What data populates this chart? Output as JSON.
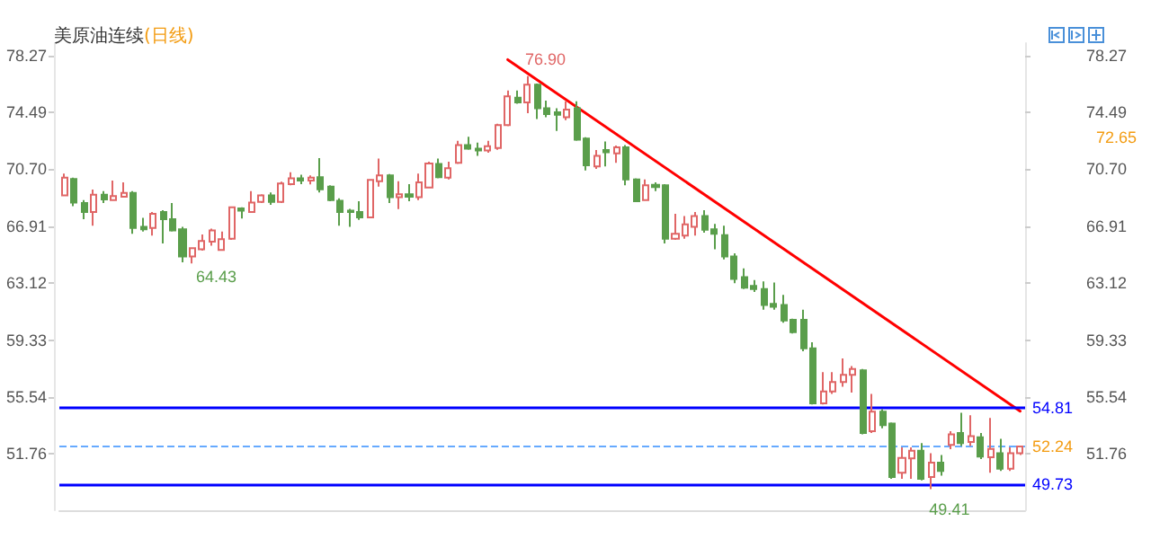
{
  "chart_data": {
    "type": "candlestick",
    "title": "美原油连续",
    "subtitle": "(日线)",
    "categories": [
      null,
      null,
      null,
      null,
      null,
      null,
      null,
      null,
      null,
      null,
      null,
      null,
      null,
      null,
      null,
      null,
      null,
      null,
      null,
      null,
      null,
      null,
      null,
      null,
      null,
      null,
      null,
      null,
      null,
      null,
      null,
      null,
      null,
      null,
      null,
      null,
      null,
      null,
      null,
      null,
      null,
      null,
      null,
      null,
      null,
      null,
      null,
      null,
      null,
      null,
      null,
      null,
      null,
      null,
      null,
      null,
      null,
      null,
      null,
      null,
      null,
      null,
      null,
      null,
      null,
      null,
      null,
      null,
      null,
      null,
      null,
      null,
      null,
      null,
      null,
      null,
      null,
      null,
      null,
      null,
      null,
      null,
      null,
      null,
      null,
      null,
      null,
      null,
      null,
      null,
      null,
      null,
      null,
      null,
      null,
      null,
      null,
      null
    ],
    "ohlc": [
      [
        68.96,
        70.42,
        68.92,
        70.14
      ],
      [
        70.06,
        70.14,
        68.25,
        68.49
      ],
      [
        68.45,
        68.65,
        67.38,
        67.86
      ],
      [
        67.86,
        69.35,
        66.95,
        69.0
      ],
      [
        69.0,
        69.24,
        68.45,
        68.7
      ],
      [
        68.65,
        69.95,
        68.61,
        68.92
      ],
      [
        68.88,
        69.83,
        68.84,
        69.12
      ],
      [
        69.12,
        69.24,
        66.4,
        66.79
      ],
      [
        66.87,
        67.46,
        66.56,
        66.71
      ],
      [
        66.79,
        67.86,
        66.28,
        67.74
      ],
      [
        67.86,
        67.98,
        65.77,
        67.38
      ],
      [
        67.38,
        68.45,
        66.56,
        66.63
      ],
      [
        66.71,
        66.87,
        64.51,
        64.9
      ],
      [
        64.9,
        65.45,
        64.43,
        65.45
      ],
      [
        65.37,
        66.36,
        65.29,
        65.92
      ],
      [
        65.88,
        66.75,
        65.61,
        66.63
      ],
      [
        65.33,
        66.56,
        65.29,
        66.04
      ],
      [
        66.08,
        68.21,
        66.0,
        68.17
      ],
      [
        68.09,
        68.17,
        67.42,
        67.94
      ],
      [
        67.86,
        69.24,
        67.82,
        68.49
      ],
      [
        68.53,
        69.04,
        68.45,
        68.96
      ],
      [
        68.96,
        69.16,
        68.33,
        68.53
      ],
      [
        68.53,
        69.87,
        68.45,
        69.75
      ],
      [
        69.71,
        70.5,
        69.63,
        70.1
      ],
      [
        70.1,
        70.34,
        69.71,
        69.95
      ],
      [
        69.95,
        70.3,
        69.7,
        70.14
      ],
      [
        70.18,
        71.45,
        69.16,
        69.36
      ],
      [
        69.55,
        69.63,
        68.57,
        68.65
      ],
      [
        68.61,
        68.77,
        66.95,
        67.86
      ],
      [
        67.94,
        68.06,
        66.87,
        67.86
      ],
      [
        67.86,
        68.57,
        67.34,
        67.5
      ],
      [
        67.5,
        70.03,
        67.46,
        69.99
      ],
      [
        69.91,
        71.41,
        69.55,
        70.3
      ],
      [
        70.3,
        70.38,
        68.45,
        68.84
      ],
      [
        68.84,
        69.91,
        68.05,
        69.04
      ],
      [
        69.04,
        69.71,
        68.57,
        68.88
      ],
      [
        68.84,
        70.42,
        68.65,
        69.83
      ],
      [
        69.48,
        71.21,
        69.44,
        71.09
      ],
      [
        71.06,
        71.41,
        70.1,
        70.18
      ],
      [
        70.14,
        71.21,
        70.03,
        70.77
      ],
      [
        71.13,
        72.59,
        71.05,
        72.31
      ],
      [
        72.31,
        72.86,
        72.0,
        72.08
      ],
      [
        72.08,
        72.47,
        71.6,
        71.96
      ],
      [
        71.96,
        72.59,
        71.8,
        72.23
      ],
      [
        72.12,
        73.73,
        72.0,
        73.65
      ],
      [
        73.65,
        75.94,
        73.57,
        75.55
      ],
      [
        75.47,
        75.94,
        75.07,
        75.15
      ],
      [
        75.15,
        76.9,
        74.44,
        76.33
      ],
      [
        76.33,
        76.41,
        74.05,
        74.76
      ],
      [
        74.76,
        75.27,
        74.17,
        74.37
      ],
      [
        74.49,
        74.76,
        73.26,
        74.33
      ],
      [
        74.17,
        75.23,
        73.97,
        74.68
      ],
      [
        74.76,
        75.23,
        72.59,
        72.67
      ],
      [
        72.75,
        72.83,
        70.62,
        70.97
      ],
      [
        70.89,
        71.99,
        70.73,
        71.6
      ],
      [
        71.99,
        72.55,
        70.89,
        71.84
      ],
      [
        71.76,
        72.28,
        71.13,
        72.16
      ],
      [
        72.16,
        72.31,
        69.63,
        70.03
      ],
      [
        70.03,
        70.1,
        68.53,
        68.57
      ],
      [
        68.65,
        70.03,
        68.61,
        69.63
      ],
      [
        69.67,
        69.83,
        69.24,
        69.51
      ],
      [
        69.63,
        69.71,
        65.77,
        66.08
      ],
      [
        66.08,
        67.74,
        66.0,
        66.4
      ],
      [
        66.28,
        67.58,
        66.08,
        67.03
      ],
      [
        66.87,
        67.86,
        66.28,
        67.58
      ],
      [
        67.58,
        67.98,
        66.48,
        66.67
      ],
      [
        66.71,
        67.07,
        65.37,
        66.4
      ],
      [
        66.32,
        66.95,
        64.7,
        64.9
      ],
      [
        64.9,
        65.1,
        63.12,
        63.4
      ],
      [
        63.52,
        64.11,
        62.73,
        62.81
      ],
      [
        62.93,
        63.32,
        62.53,
        62.73
      ],
      [
        62.73,
        63.24,
        61.35,
        61.66
      ],
      [
        61.74,
        63.16,
        61.35,
        61.54
      ],
      [
        61.66,
        62.34,
        60.48,
        60.64
      ],
      [
        60.68,
        60.76,
        59.77,
        59.85
      ],
      [
        60.68,
        61.35,
        58.59,
        58.78
      ],
      [
        58.78,
        59.18,
        55.04,
        55.12
      ],
      [
        55.12,
        57.2,
        55.04,
        55.91
      ],
      [
        55.91,
        57.2,
        55.75,
        56.54
      ],
      [
        56.54,
        58.11,
        56.22,
        57.01
      ],
      [
        57.01,
        57.6,
        55.83,
        57.4
      ],
      [
        57.32,
        57.4,
        53.06,
        53.14
      ],
      [
        53.26,
        55.75,
        53.14,
        54.57
      ],
      [
        54.57,
        54.73,
        53.46,
        53.66
      ],
      [
        53.77,
        53.85,
        50.1,
        50.22
      ],
      [
        50.5,
        52.19,
        50.1,
        51.49
      ],
      [
        51.45,
        52.19,
        50.1,
        51.96
      ],
      [
        51.96,
        52.47,
        49.99,
        50.1
      ],
      [
        50.22,
        51.8,
        49.41,
        51.17
      ],
      [
        51.17,
        51.68,
        50.3,
        50.62
      ],
      [
        52.35,
        53.26,
        52.07,
        53.06
      ],
      [
        53.14,
        54.49,
        52.27,
        52.47
      ],
      [
        52.55,
        54.33,
        52.27,
        52.94
      ],
      [
        52.86,
        53.14,
        51.41,
        51.57
      ],
      [
        51.53,
        54.14,
        50.5,
        52.08
      ],
      [
        51.8,
        52.75,
        50.62,
        50.77
      ],
      [
        50.77,
        52.19,
        50.62,
        51.8
      ],
      [
        51.8,
        52.27,
        51.68,
        52.24
      ]
    ],
    "series": [
      {
        "type": "line",
        "color": "#ff0000",
        "values": [
          null,
          null,
          null,
          null,
          null,
          null,
          null,
          null,
          null,
          null,
          null,
          null,
          null,
          null,
          null,
          null,
          null,
          null,
          null,
          null,
          null,
          null,
          null,
          null,
          null,
          null,
          null,
          null,
          null,
          null,
          null,
          null,
          null,
          null,
          null,
          null,
          null,
          null,
          null,
          null,
          null,
          null,
          null,
          null,
          null,
          78.0,
          null,
          null,
          null,
          null,
          null,
          null,
          null,
          null,
          null,
          null,
          null,
          null,
          null,
          null,
          null,
          null,
          null,
          null,
          null,
          null,
          null,
          null,
          null,
          null,
          null,
          null,
          null,
          null,
          null,
          null,
          null,
          null,
          null,
          null,
          null,
          null,
          null,
          null,
          null,
          null,
          null,
          null,
          null,
          null,
          null,
          null,
          null,
          null,
          null,
          null,
          null,
          54.6
        ]
      }
    ],
    "ylim": [
      48.0,
      79.1
    ],
    "yticks": [
      51.76,
      55.54,
      59.33,
      63.12,
      66.91,
      {
        "value": 70.7,
        "label": "70.70"
      },
      74.49,
      78.27
    ],
    "y2lim": [
      48.0,
      79.1
    ],
    "y2ticks": [
      51.76,
      55.54,
      59.33,
      63.12,
      66.91,
      {
        "value": 70.7,
        "label": "70.70"
      },
      74.49,
      78.27
    ],
    "ref_lines": [
      {
        "axis": "y",
        "value": 54.81,
        "label": "54.81",
        "color": "#0000ff",
        "line_style": "solid"
      },
      {
        "axis": "y",
        "value": 49.73,
        "label": "49.73",
        "color": "#0000ff",
        "line_style": "solid"
      },
      {
        "axis": "y",
        "value": 52.24,
        "label": "52.24",
        "color": "#66aaff",
        "line_style": "dashed"
      }
    ],
    "annotations": [
      {
        "text": "76.90",
        "y": 76.9
      },
      "64.43",
      {
        "text": "49.41",
        "y": 49.41
      },
      "72.65"
    ]
  }
}
